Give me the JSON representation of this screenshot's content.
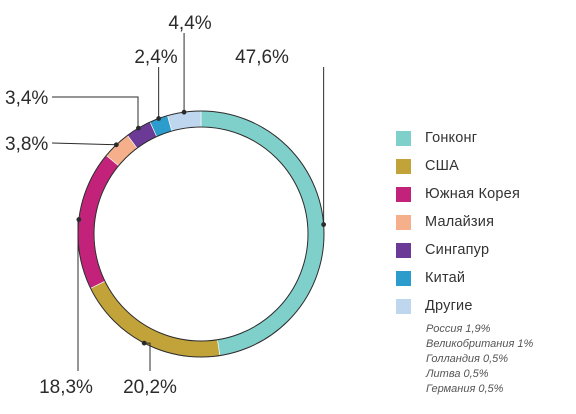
{
  "chart_data": {
    "type": "pie",
    "variant": "donut",
    "title": "",
    "categories": [
      "Гонконг",
      "США",
      "Южная Корея",
      "Малайзия",
      "Сингапур",
      "Китай",
      "Другие"
    ],
    "values": [
      47.6,
      20.2,
      18.3,
      3.8,
      3.4,
      2.4,
      4.4
    ],
    "data_labels": [
      "47,6%",
      "20,2%",
      "18,3%",
      "3,8%",
      "3,4%",
      "2,4%",
      "4,4%"
    ],
    "colors": [
      "#7FCFCB",
      "#C2A33A",
      "#C2227A",
      "#F5AF8B",
      "#6B3A96",
      "#2B9CCB",
      "#BFD7EE"
    ],
    "legend_position": "right",
    "annotations": [
      "Россия 1,9%",
      "Великобритания 1%",
      "Голландия 0,5%",
      "Литва 0,5%",
      "Германия 0,5%"
    ]
  }
}
